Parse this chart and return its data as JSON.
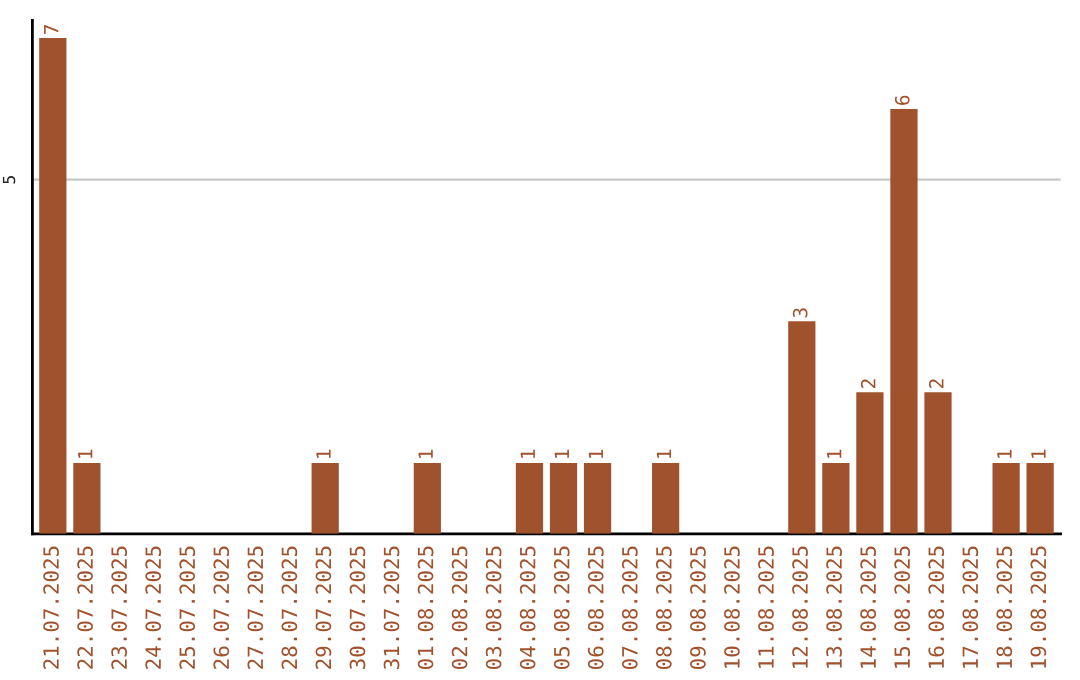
{
  "chart_data": {
    "type": "bar",
    "categories": [
      "21.07.2025",
      "22.07.2025",
      "23.07.2025",
      "24.07.2025",
      "25.07.2025",
      "26.07.2025",
      "27.07.2025",
      "28.07.2025",
      "29.07.2025",
      "30.07.2025",
      "31.07.2025",
      "01.08.2025",
      "02.08.2025",
      "03.08.2025",
      "04.08.2025",
      "05.08.2025",
      "06.08.2025",
      "07.08.2025",
      "08.08.2025",
      "09.08.2025",
      "10.08.2025",
      "11.08.2025",
      "12.08.2025",
      "13.08.2025",
      "14.08.2025",
      "15.08.2025",
      "16.08.2025",
      "17.08.2025",
      "18.08.2025",
      "19.08.2025"
    ],
    "values": [
      7,
      1,
      0,
      0,
      0,
      0,
      0,
      0,
      1,
      0,
      0,
      1,
      0,
      0,
      1,
      1,
      1,
      0,
      1,
      0,
      0,
      0,
      3,
      1,
      2,
      6,
      2,
      0,
      1,
      1
    ],
    "value_labels": [
      "7",
      "1",
      null,
      null,
      null,
      null,
      null,
      null,
      "1",
      null,
      null,
      "1",
      null,
      null,
      "1",
      "1",
      "1",
      null,
      "1",
      null,
      null,
      null,
      "3",
      "1",
      "2",
      "6",
      "2",
      null,
      "1",
      "1"
    ],
    "color": "#a0522d",
    "ylim": [
      0,
      7.25
    ],
    "yticks": [
      5
    ],
    "grid": "y"
  }
}
